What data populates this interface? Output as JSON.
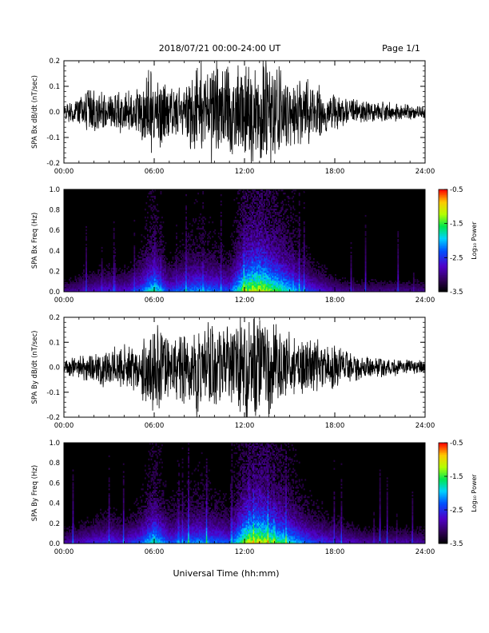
{
  "header": {
    "date_range": "2018/07/21   00:00-24:00 UT",
    "page": "Page 1/1"
  },
  "xlabel": "Universal Time (hh:mm)",
  "time_ticks": [
    "00:00",
    "06:00",
    "12:00",
    "18:00",
    "24:00"
  ],
  "colorbar": {
    "label": "Log₁₀ Power",
    "ticks": [
      "-0.5",
      "-1.5",
      "-2.5",
      "-3.5"
    ],
    "range": [
      -3.5,
      -0.5
    ],
    "colormap": "rainbow"
  },
  "chart_data": [
    {
      "type": "line",
      "ylabel": "SPA Bx dB/dt (nT/sec)",
      "xlim": [
        0,
        24
      ],
      "ylim": [
        -0.2,
        0.2
      ],
      "yticks": [
        "-0.2",
        "-0.1",
        "0.0",
        "0.1",
        "0.2"
      ],
      "x_hours": [
        0,
        1,
        2,
        3,
        4,
        5,
        6,
        7,
        8,
        9,
        10,
        11,
        12,
        13,
        14,
        15,
        16,
        17,
        18,
        19,
        20,
        21,
        22,
        23,
        24
      ],
      "amplitude": [
        0.04,
        0.07,
        0.1,
        0.08,
        0.09,
        0.1,
        0.22,
        0.1,
        0.14,
        0.22,
        0.22,
        0.2,
        0.24,
        0.24,
        0.22,
        0.16,
        0.14,
        0.11,
        0.08,
        0.06,
        0.05,
        0.05,
        0.04,
        0.035,
        0.03
      ],
      "color": "#000000"
    },
    {
      "type": "heatmap",
      "ylabel": "SPA Bx Freq (Hz)",
      "xlim": [
        0,
        24
      ],
      "ylim": [
        0,
        1.0
      ],
      "yticks": [
        "0.0",
        "0.2",
        "0.4",
        "0.6",
        "0.8",
        "1.0"
      ],
      "x_hours": [
        0,
        1,
        2,
        3,
        4,
        5,
        6,
        7,
        8,
        9,
        10,
        11,
        12,
        13,
        14,
        15,
        16,
        17,
        18,
        19,
        20,
        21,
        22,
        23,
        24
      ],
      "activity": [
        0.25,
        0.3,
        0.35,
        0.4,
        0.35,
        0.5,
        0.75,
        0.45,
        0.55,
        0.6,
        0.55,
        0.5,
        0.9,
        1.0,
        0.85,
        0.7,
        0.5,
        0.4,
        0.3,
        0.25,
        0.25,
        0.25,
        0.25,
        0.25,
        0.25
      ]
    },
    {
      "type": "line",
      "ylabel": "SPA By dB/dt (nT/sec)",
      "xlim": [
        0,
        24
      ],
      "ylim": [
        -0.2,
        0.2
      ],
      "yticks": [
        "-0.2",
        "-0.1",
        "0.0",
        "0.1",
        "0.2"
      ],
      "x_hours": [
        0,
        1,
        2,
        3,
        4,
        5,
        6,
        7,
        8,
        9,
        10,
        11,
        12,
        13,
        14,
        15,
        16,
        17,
        18,
        19,
        20,
        21,
        22,
        23,
        24
      ],
      "amplitude": [
        0.03,
        0.05,
        0.07,
        0.09,
        0.1,
        0.11,
        0.22,
        0.12,
        0.16,
        0.22,
        0.22,
        0.18,
        0.24,
        0.24,
        0.2,
        0.15,
        0.13,
        0.12,
        0.09,
        0.07,
        0.05,
        0.05,
        0.04,
        0.035,
        0.03
      ],
      "color": "#000000"
    },
    {
      "type": "heatmap",
      "ylabel": "SPA By Freq (Hz)",
      "xlim": [
        0,
        24
      ],
      "ylim": [
        0,
        1.0
      ],
      "yticks": [
        "0.0",
        "0.2",
        "0.4",
        "0.6",
        "0.8",
        "1.0"
      ],
      "x_hours": [
        0,
        1,
        2,
        3,
        4,
        5,
        6,
        7,
        8,
        9,
        10,
        11,
        12,
        13,
        14,
        15,
        16,
        17,
        18,
        19,
        20,
        21,
        22,
        23,
        24
      ],
      "activity": [
        0.3,
        0.35,
        0.4,
        0.45,
        0.4,
        0.5,
        0.75,
        0.5,
        0.55,
        0.6,
        0.55,
        0.5,
        0.9,
        1.0,
        0.85,
        0.7,
        0.55,
        0.45,
        0.4,
        0.35,
        0.3,
        0.3,
        0.3,
        0.3,
        0.3
      ]
    }
  ]
}
